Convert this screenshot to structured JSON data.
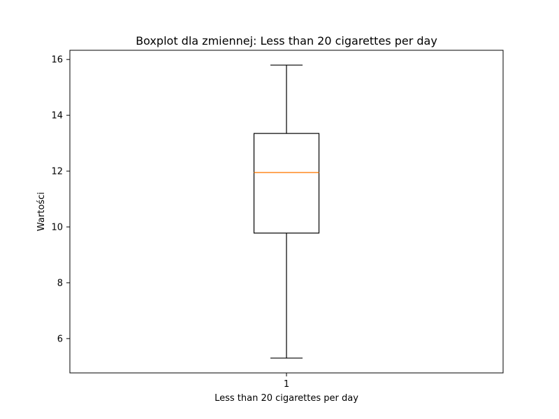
{
  "chart_data": {
    "type": "boxplot",
    "title": "Boxplot dla zmiennej: Less than 20 cigarettes per day",
    "xlabel": "Less than 20 cigarettes per day",
    "ylabel": "Wartości",
    "categories": [
      "1"
    ],
    "boxes": [
      {
        "category": "1",
        "whisker_low": 5.3,
        "q1": 9.78,
        "median": 11.95,
        "q3": 13.35,
        "whisker_high": 15.8
      }
    ],
    "ylim": [
      4.77,
      16.33
    ],
    "yticks": [
      "6",
      "8",
      "10",
      "12",
      "14",
      "16"
    ],
    "grid": false,
    "colors": {
      "box": "#000000",
      "median": "#ff7f0e",
      "whisker": "#000000"
    }
  }
}
